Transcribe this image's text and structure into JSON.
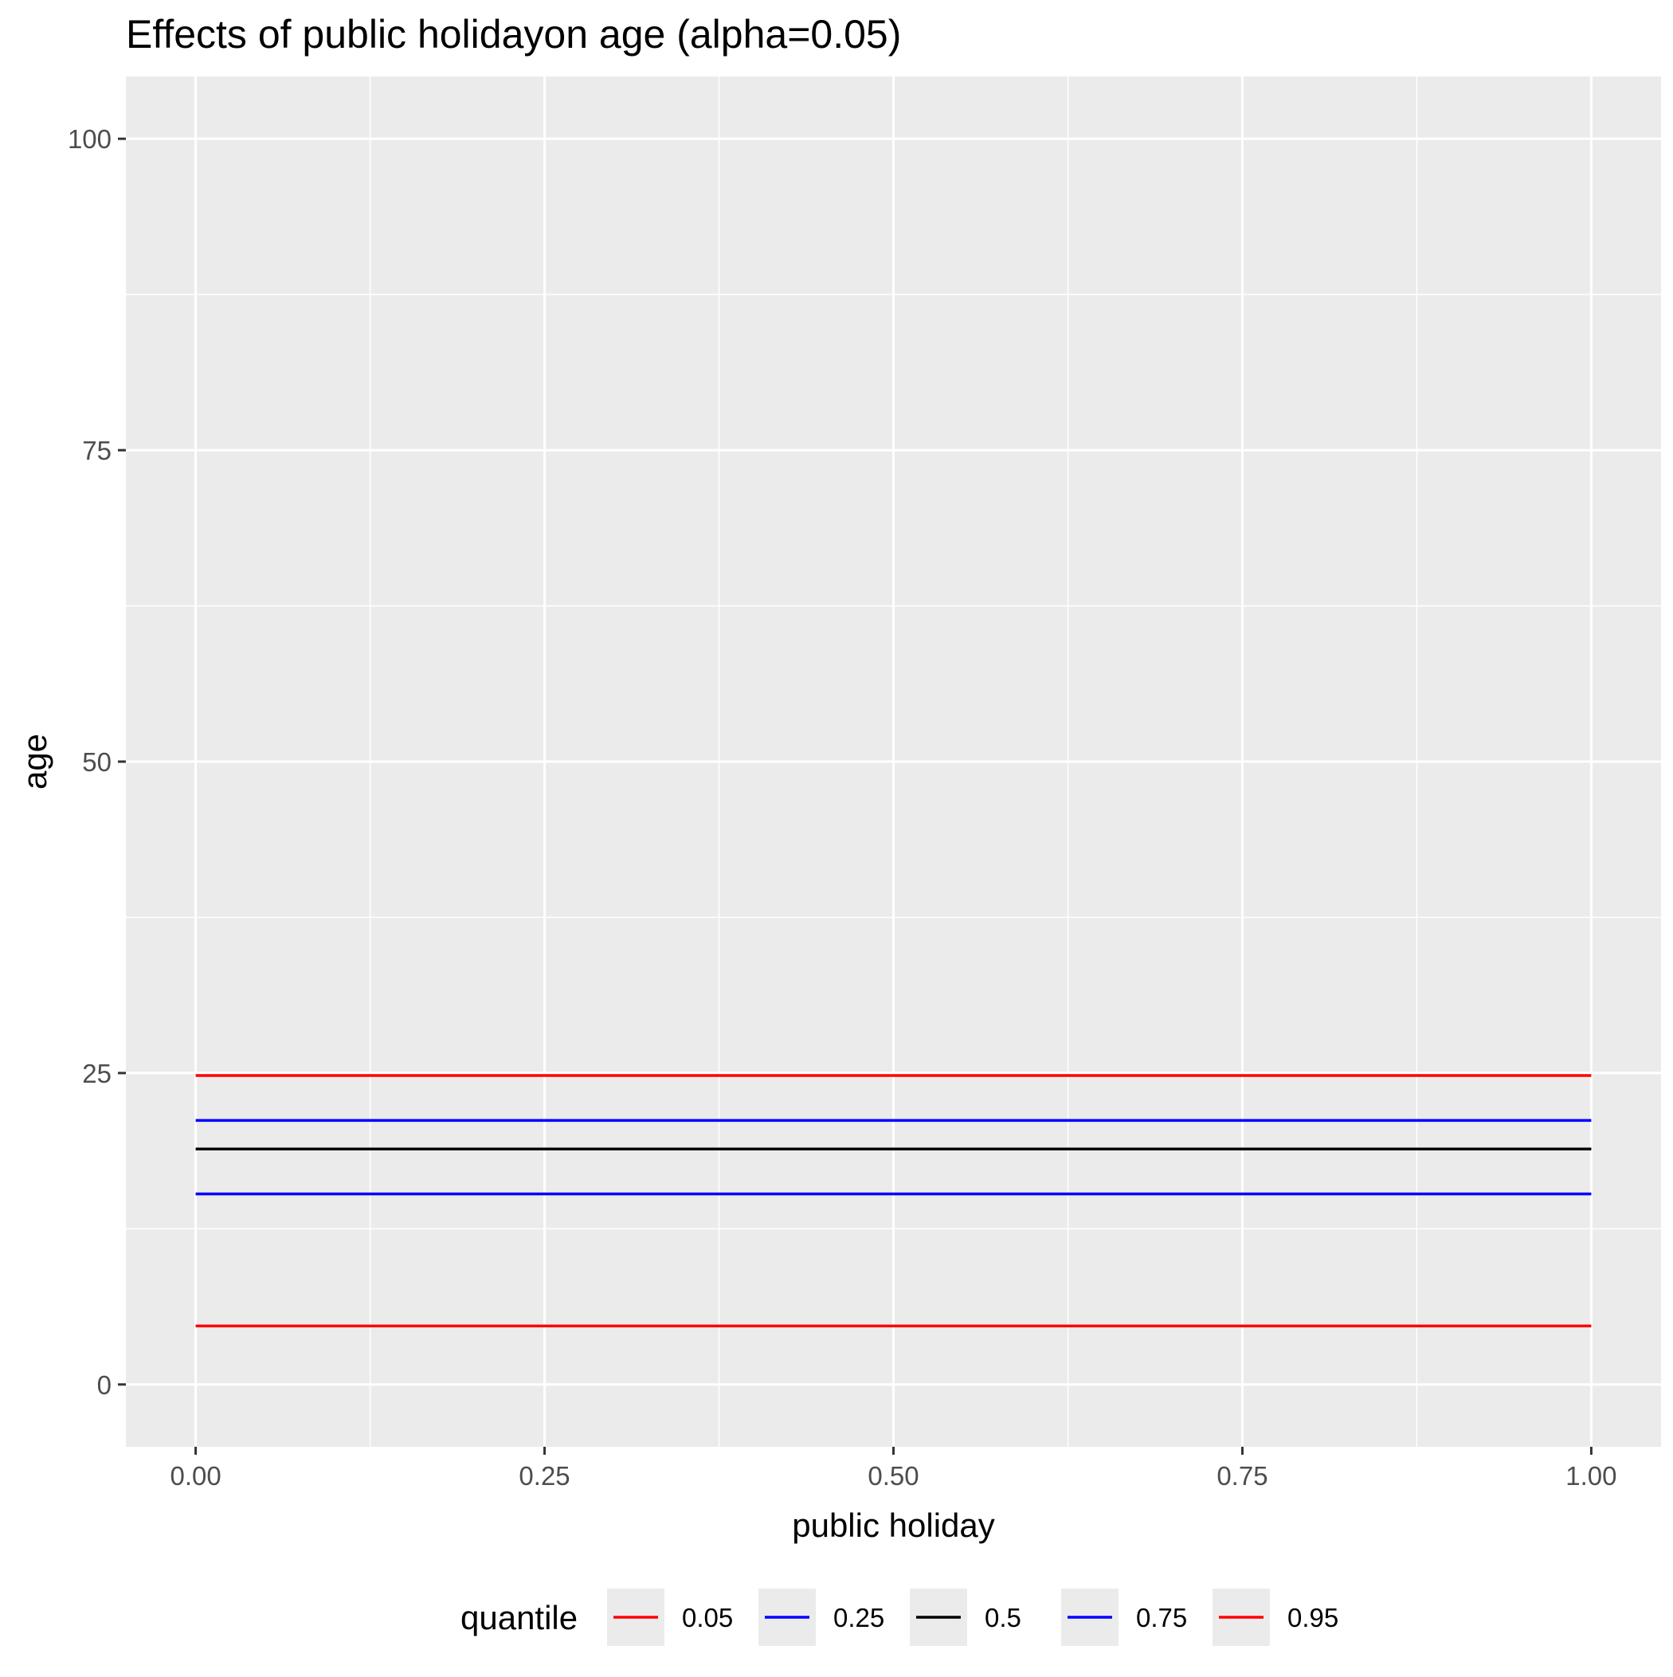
{
  "chart_data": {
    "type": "line",
    "title": "Effects of public holidayon age (alpha=0.05)",
    "xlabel": "public holiday",
    "ylabel": "age",
    "xlim": [
      -0.05,
      1.05
    ],
    "ylim": [
      -5,
      105
    ],
    "x_ticks": [
      0,
      0.25,
      0.5,
      0.75,
      1
    ],
    "x_tick_labels": [
      "0.00",
      "0.25",
      "0.50",
      "0.75",
      "1.00"
    ],
    "x_minor_ticks": [
      0.125,
      0.375,
      0.625,
      0.875
    ],
    "y_ticks": [
      0,
      25,
      50,
      75,
      100
    ],
    "y_tick_labels": [
      "0",
      "25",
      "50",
      "75",
      "100"
    ],
    "y_minor_ticks": [
      12.5,
      37.5,
      62.5,
      87.5
    ],
    "grid": true,
    "panel_background": "#ebebeb",
    "grid_color": "#ffffff",
    "legend": {
      "title": "quantile",
      "position": "bottom",
      "entries": [
        "0.05",
        "0.25",
        "0.5",
        "0.75",
        "0.95"
      ]
    },
    "series": [
      {
        "name": "0.05",
        "color": "#ff0000",
        "x": [
          0,
          1
        ],
        "y": [
          4.7,
          4.7
        ]
      },
      {
        "name": "0.25",
        "color": "#0000ff",
        "x": [
          0,
          1
        ],
        "y": [
          15.3,
          15.3
        ]
      },
      {
        "name": "0.5",
        "color": "#000000",
        "x": [
          0,
          1
        ],
        "y": [
          18.9,
          18.9
        ]
      },
      {
        "name": "0.75",
        "color": "#0000ff",
        "x": [
          0,
          1
        ],
        "y": [
          21.2,
          21.2
        ]
      },
      {
        "name": "0.95",
        "color": "#ff0000",
        "x": [
          0,
          1
        ],
        "y": [
          24.8,
          24.8
        ]
      }
    ]
  }
}
